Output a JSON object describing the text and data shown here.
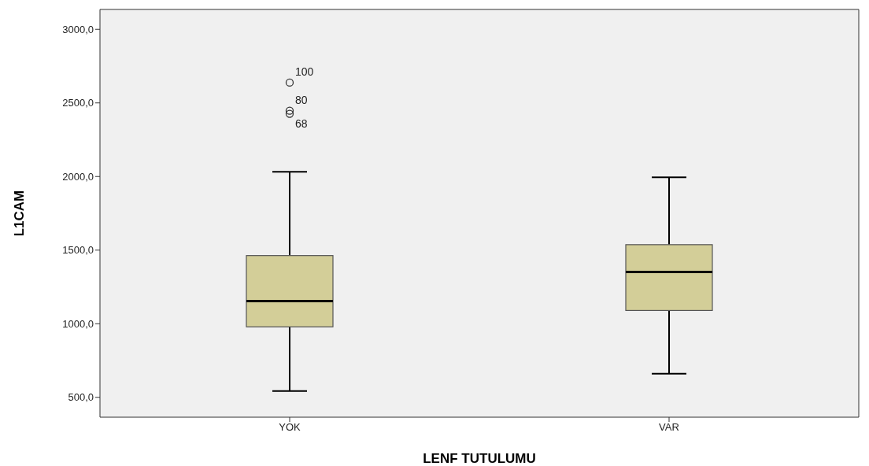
{
  "chart_data": {
    "type": "box",
    "xlabel": "LENF TUTULUMU",
    "ylabel": "L1CAM",
    "categories": [
      "YOK",
      "VAR"
    ],
    "boxes": [
      {
        "low": 543,
        "q1": 979,
        "median": 1154,
        "q3": 1463,
        "high": 2032,
        "outliers": [
          2638,
          2447,
          2426
        ]
      },
      {
        "low": 660,
        "q1": 1090,
        "median": 1351,
        "q3": 1537,
        "high": 1995
      }
    ],
    "color": "#d3ce98",
    "ylim": [
      365,
      3135
    ],
    "yticks": [
      {
        "value": 500,
        "label": "500,0"
      },
      {
        "value": 1000,
        "label": "1000,0"
      },
      {
        "value": 1500,
        "label": "1500,0"
      },
      {
        "value": 2000,
        "label": "2000,0"
      },
      {
        "value": 2500,
        "label": "2500,0"
      },
      {
        "value": 3000,
        "label": "3000,0"
      }
    ],
    "annotations": [
      "100",
      "80",
      "68"
    ]
  }
}
